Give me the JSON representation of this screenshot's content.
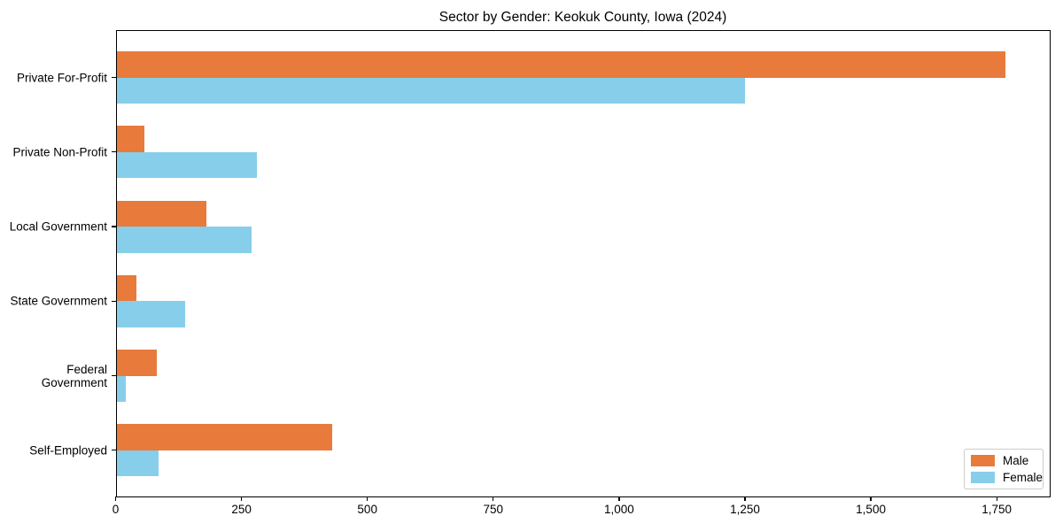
{
  "chart_data": {
    "type": "bar",
    "orientation": "horizontal",
    "title": "Sector by Gender: Keokuk County, Iowa (2024)",
    "categories": [
      "Private For-Profit",
      "Private Non-Profit",
      "Local Government",
      "State Government",
      "Federal Government",
      "Self-Employed"
    ],
    "series": [
      {
        "name": "Male",
        "color": "#e87a3b",
        "values": [
          1768,
          57,
          180,
          42,
          82,
          430
        ]
      },
      {
        "name": "Female",
        "color": "#87ceeb",
        "values": [
          1250,
          280,
          270,
          138,
          21,
          86
        ]
      }
    ],
    "x_ticks": [
      0,
      250,
      500,
      750,
      1000,
      1250,
      1500,
      1750
    ],
    "x_tick_labels": [
      "0",
      "250",
      "500",
      "750",
      "1,000",
      "1,250",
      "1,500",
      "1,750"
    ],
    "xlim": [
      0,
      1857
    ],
    "xlabel": "",
    "ylabel": "",
    "grid": false,
    "legend_position": "lower right",
    "background_color": "#ffffff",
    "spine_color": "#000000"
  }
}
